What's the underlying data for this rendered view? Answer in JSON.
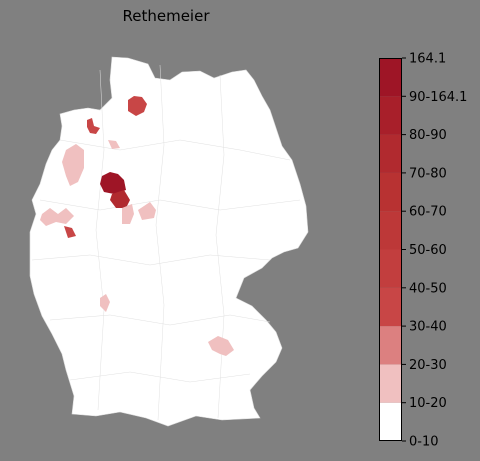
{
  "map": {
    "title": "Rethemeier",
    "region": "Germany (districts)",
    "base_fill": "#ffffff",
    "border_color": "#d0d0d0",
    "highlighted_regions": [
      {
        "name": "region-north-east-hamburg",
        "bin": "30-40"
      },
      {
        "name": "region-east-frisia",
        "bin": "30-40"
      },
      {
        "name": "region-emsland",
        "bin": "10-20"
      },
      {
        "name": "region-weser",
        "bin": "10-20"
      },
      {
        "name": "region-minden-lubbecke",
        "bin": "90-164.1"
      },
      {
        "name": "region-herford",
        "bin": "70-80"
      },
      {
        "name": "region-lippe",
        "bin": "10-20"
      },
      {
        "name": "region-hildesheim",
        "bin": "10-20"
      },
      {
        "name": "region-muenster",
        "bin": "10-20"
      },
      {
        "name": "region-ruhr",
        "bin": "30-40"
      },
      {
        "name": "region-hesse",
        "bin": "10-20"
      },
      {
        "name": "region-bavaria",
        "bin": "10-20"
      }
    ]
  },
  "legend": {
    "bins": [
      {
        "label": "0-10",
        "color": "#ffffff"
      },
      {
        "label": "10-20",
        "color": "#f0c0c0"
      },
      {
        "label": "20-30",
        "color": "#dc8080"
      },
      {
        "label": "30-40",
        "color": "#c84646"
      },
      {
        "label": "40-50",
        "color": "#c23e3e"
      },
      {
        "label": "50-60",
        "color": "#bd3838"
      },
      {
        "label": "60-70",
        "color": "#b83232"
      },
      {
        "label": "70-80",
        "color": "#b12a2f"
      },
      {
        "label": "80-90",
        "color": "#a81f2a"
      },
      {
        "label": "90-164.1",
        "color": "#9e1526"
      }
    ],
    "top_color": "#9a0e22",
    "ticks": [
      "0-10",
      "10-20",
      "20-30",
      "30-40",
      "40-50",
      "50-60",
      "60-70",
      "70-80",
      "80-90",
      "90-164.1",
      "164.1"
    ]
  }
}
